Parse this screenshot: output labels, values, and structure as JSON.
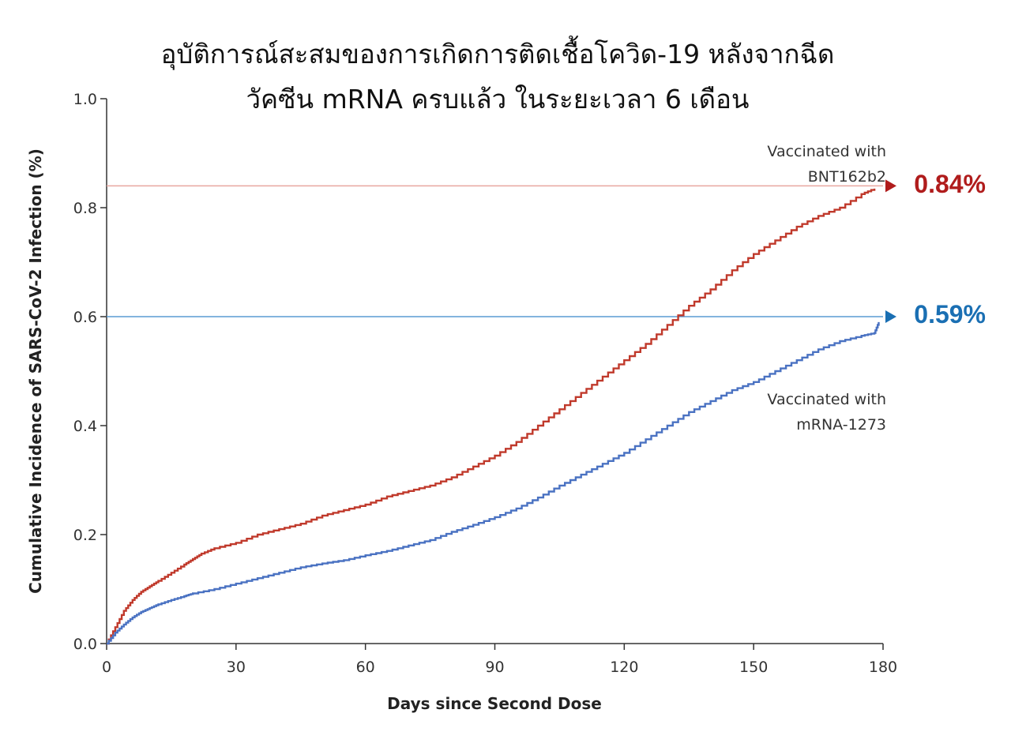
{
  "chart_data": {
    "type": "line",
    "title_lines": [
      "อุบัติการณ์สะสมของการเกิดการติดเชื้อโควิด-19 หลังจากฉีด",
      "วัคซีน mRNA ครบแล้ว ในระยะเวลา 6 เดือน"
    ],
    "xlabel": "Days since Second Dose",
    "ylabel": "Cumulative Incidence of SARS-CoV-2 Infection (%)",
    "xlim": [
      0,
      180
    ],
    "ylim": [
      0,
      1.0
    ],
    "x_ticks": [
      "0",
      "30",
      "60",
      "90",
      "120",
      "150",
      "180"
    ],
    "y_ticks": [
      "0.0",
      "0.2",
      "0.4",
      "0.6",
      "0.8",
      "1.0"
    ],
    "grid": false,
    "series": [
      {
        "name_lines": [
          "Vaccinated with",
          "BNT162b2"
        ],
        "color": "#c0392b",
        "final_label": "0.84%",
        "final_label_color": "#b01c1c",
        "reference_value": 0.84,
        "x": [
          0,
          2,
          4,
          6,
          8,
          10,
          12,
          15,
          18,
          20,
          22,
          25,
          30,
          35,
          40,
          45,
          50,
          55,
          60,
          65,
          70,
          75,
          80,
          85,
          90,
          95,
          100,
          105,
          110,
          115,
          120,
          125,
          130,
          135,
          140,
          145,
          150,
          155,
          160,
          165,
          170,
          175,
          178
        ],
        "y": [
          0,
          0.03,
          0.06,
          0.08,
          0.095,
          0.105,
          0.115,
          0.13,
          0.145,
          0.155,
          0.165,
          0.175,
          0.185,
          0.2,
          0.21,
          0.22,
          0.235,
          0.245,
          0.255,
          0.27,
          0.28,
          0.29,
          0.305,
          0.325,
          0.345,
          0.37,
          0.4,
          0.43,
          0.46,
          0.49,
          0.52,
          0.55,
          0.585,
          0.62,
          0.65,
          0.685,
          0.715,
          0.74,
          0.765,
          0.785,
          0.8,
          0.825,
          0.835
        ]
      },
      {
        "name_lines": [
          "Vaccinated with",
          "mRNA-1273"
        ],
        "color": "#4a72c2",
        "final_label": "0.59%",
        "final_label_color": "#1a6fb3",
        "reference_value": 0.6,
        "x": [
          0,
          2,
          4,
          6,
          8,
          10,
          12,
          15,
          18,
          20,
          25,
          30,
          35,
          40,
          45,
          50,
          55,
          60,
          65,
          70,
          75,
          80,
          85,
          90,
          95,
          100,
          105,
          110,
          115,
          120,
          125,
          130,
          135,
          140,
          145,
          150,
          155,
          160,
          165,
          170,
          175,
          178,
          179
        ],
        "y": [
          0,
          0.02,
          0.035,
          0.048,
          0.058,
          0.065,
          0.072,
          0.08,
          0.087,
          0.092,
          0.1,
          0.11,
          0.12,
          0.13,
          0.14,
          0.147,
          0.153,
          0.162,
          0.17,
          0.18,
          0.19,
          0.205,
          0.218,
          0.232,
          0.248,
          0.268,
          0.29,
          0.31,
          0.33,
          0.35,
          0.375,
          0.4,
          0.425,
          0.445,
          0.465,
          0.48,
          0.5,
          0.52,
          0.54,
          0.555,
          0.565,
          0.57,
          0.59
        ]
      }
    ]
  }
}
